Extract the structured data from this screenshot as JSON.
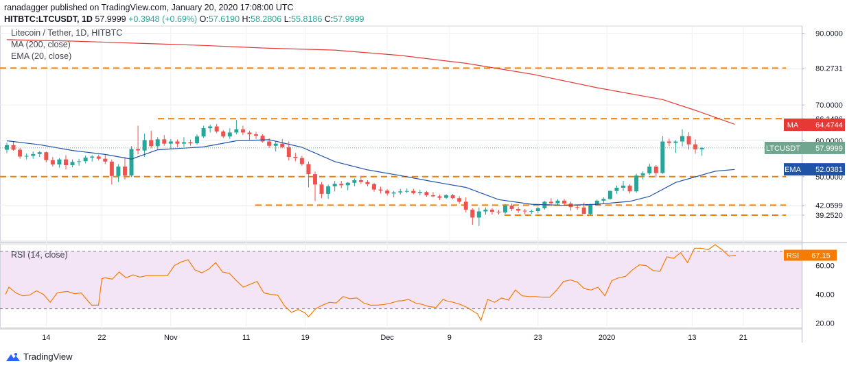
{
  "header": {
    "published": "ranadagger published on TradingView.com, January 20, 2020 17:08:00 UTC",
    "symbol": "HITBTC:LTCUSDT, 1D",
    "last": "57.9999",
    "change": "+0.3948 (+0.69%)",
    "o_label": "O:",
    "o": "57.6190",
    "h_label": "H:",
    "h": "58.2806",
    "l_label": "L:",
    "l": "55.8186",
    "c_label": "C:",
    "c": "57.9999"
  },
  "legend": {
    "pair": "Litecoin / Tether, 1D, HITBTC",
    "ma": "MA (200, close)",
    "ema": "EMA (20, close)",
    "rsi": "RSI (14, close)"
  },
  "brand": "TradingView",
  "colors": {
    "up": "#26a69a",
    "down": "#ef5350",
    "ma": "#e53935",
    "ema": "#1e53a8",
    "level": "#f57c00",
    "rsi": "#f57c00",
    "rsi_band": "#f3e5f5",
    "price_tag": "#70a690"
  },
  "chart_data": [
    {
      "type": "candlestick",
      "y_range": [
        32,
        92
      ],
      "y_ticks": [
        "90.0000",
        "80.2731",
        "70.0000",
        "66.1486",
        "64.4744",
        "60.0000",
        "57.9999",
        "52.0381",
        "50.0000",
        "42.0599",
        "39.2520"
      ],
      "x_ticks": [
        "14",
        "22",
        "Nov",
        "11",
        "19",
        "Dec",
        "9",
        "23",
        "2020",
        "13",
        "21"
      ],
      "horizontal_levels": [
        80.2731,
        66.1486,
        50.0,
        42.0599,
        39.252
      ],
      "tags": [
        {
          "label": "MA",
          "value": "64.4744",
          "price": 64.4744,
          "color": "#e53935"
        },
        {
          "label": "LTCUSDT",
          "value": "57.9999",
          "price": 57.9999,
          "color": "#70a690"
        },
        {
          "label": "EMA",
          "value": "52.0381",
          "price": 52.0381,
          "color": "#1e53a8"
        }
      ],
      "candles": [
        [
          57.5,
          59.5,
          56.5,
          58.8
        ],
        [
          58.8,
          59.8,
          57.2,
          57.5
        ],
        [
          57.5,
          58.0,
          55.0,
          55.6
        ],
        [
          55.6,
          56.5,
          54.8,
          55.8
        ],
        [
          55.8,
          57.0,
          55.0,
          56.3
        ],
        [
          56.3,
          57.2,
          55.5,
          56.8
        ],
        [
          56.8,
          57.0,
          54.0,
          54.6
        ],
        [
          54.6,
          55.5,
          52.8,
          53.4
        ],
        [
          53.4,
          55.2,
          52.5,
          54.8
        ],
        [
          54.8,
          56.0,
          52.0,
          53.2
        ],
        [
          53.2,
          54.8,
          52.6,
          54.1
        ],
        [
          54.1,
          55.0,
          53.0,
          54.3
        ],
        [
          54.3,
          55.9,
          53.7,
          55.3
        ],
        [
          55.3,
          56.0,
          54.2,
          55.6
        ],
        [
          55.6,
          56.2,
          54.5,
          55.0
        ],
        [
          55.0,
          56.2,
          53.5,
          54.2
        ],
        [
          54.2,
          54.8,
          47.8,
          50.2
        ],
        [
          50.2,
          53.5,
          48.5,
          52.8
        ],
        [
          52.8,
          55.5,
          49.2,
          50.3
        ],
        [
          50.3,
          58.5,
          49.9,
          57.7
        ],
        [
          57.7,
          64.2,
          56.2,
          57.3
        ],
        [
          57.3,
          62.0,
          55.5,
          60.2
        ],
        [
          60.2,
          62.8,
          57.9,
          58.5
        ],
        [
          58.5,
          61.0,
          57.7,
          60.4
        ],
        [
          60.4,
          61.6,
          58.6,
          59.2
        ],
        [
          59.2,
          60.5,
          57.7,
          59.8
        ],
        [
          59.8,
          60.4,
          58.2,
          59.2
        ],
        [
          59.2,
          61.0,
          58.3,
          59.6
        ],
        [
          59.6,
          60.3,
          58.6,
          59.3
        ],
        [
          59.3,
          61.8,
          58.9,
          61.2
        ],
        [
          61.2,
          64.2,
          60.8,
          63.5
        ],
        [
          63.5,
          64.5,
          62.3,
          64.0
        ],
        [
          64.0,
          64.7,
          62.1,
          62.6
        ],
        [
          62.6,
          63.0,
          60.8,
          61.2
        ],
        [
          61.2,
          63.5,
          60.5,
          62.3
        ],
        [
          62.3,
          65.8,
          61.8,
          63.2
        ],
        [
          63.2,
          64.2,
          61.6,
          62.3
        ],
        [
          62.3,
          62.8,
          60.2,
          61.8
        ],
        [
          61.8,
          62.5,
          60.5,
          61.4
        ],
        [
          61.4,
          61.8,
          59.5,
          59.8
        ],
        [
          59.8,
          60.7,
          58.0,
          58.6
        ],
        [
          58.6,
          59.8,
          57.0,
          59.2
        ],
        [
          59.2,
          60.5,
          57.9,
          58.2
        ],
        [
          58.2,
          59.8,
          54.5,
          55.5
        ],
        [
          55.5,
          56.6,
          54.3,
          55.2
        ],
        [
          55.2,
          55.8,
          53.0,
          53.5
        ],
        [
          53.5,
          54.2,
          47.0,
          50.7
        ],
        [
          50.7,
          51.4,
          43.2,
          47.8
        ],
        [
          47.8,
          48.5,
          44.0,
          45.2
        ],
        [
          45.2,
          47.8,
          43.8,
          47.3
        ],
        [
          47.3,
          48.8,
          45.9,
          48.0
        ],
        [
          48.0,
          48.8,
          46.8,
          47.6
        ],
        [
          47.6,
          48.5,
          46.2,
          48.3
        ],
        [
          48.3,
          49.5,
          47.3,
          49.0
        ],
        [
          49.0,
          50.0,
          48.0,
          48.5
        ],
        [
          48.5,
          49.0,
          47.3,
          47.9
        ],
        [
          47.9,
          48.3,
          45.8,
          46.4
        ],
        [
          46.4,
          47.2,
          45.3,
          46.1
        ],
        [
          46.1,
          46.5,
          44.7,
          45.3
        ],
        [
          45.3,
          46.0,
          44.2,
          45.6
        ],
        [
          45.6,
          46.6,
          45.0,
          45.9
        ],
        [
          45.9,
          46.7,
          45.4,
          46.0
        ],
        [
          46.0,
          46.6,
          45.1,
          45.4
        ],
        [
          45.4,
          46.3,
          44.8,
          45.7
        ],
        [
          45.7,
          46.0,
          44.4,
          44.8
        ],
        [
          44.8,
          45.7,
          44.2,
          44.5
        ],
        [
          44.5,
          45.0,
          43.5,
          44.1
        ],
        [
          44.1,
          45.1,
          43.8,
          44.8
        ],
        [
          44.8,
          45.2,
          43.7,
          44.0
        ],
        [
          44.0,
          44.5,
          42.5,
          43.0
        ],
        [
          43.0,
          44.2,
          40.0,
          40.8
        ],
        [
          40.8,
          41.2,
          36.6,
          38.6
        ],
        [
          38.6,
          41.4,
          36.2,
          40.3
        ],
        [
          40.3,
          41.4,
          39.4,
          40.8
        ],
        [
          40.8,
          41.2,
          39.4,
          40.2
        ],
        [
          40.2,
          40.7,
          39.5,
          40.0
        ],
        [
          40.0,
          42.4,
          39.6,
          41.9
        ],
        [
          41.9,
          42.5,
          40.4,
          41.0
        ],
        [
          41.0,
          41.5,
          39.9,
          40.5
        ],
        [
          40.5,
          41.0,
          39.5,
          40.3
        ],
        [
          40.3,
          40.8,
          39.6,
          40.4
        ],
        [
          40.4,
          41.6,
          39.8,
          41.2
        ],
        [
          41.2,
          43.2,
          40.8,
          43.0
        ],
        [
          43.0,
          44.0,
          41.8,
          42.6
        ],
        [
          42.6,
          43.7,
          42.0,
          43.3
        ],
        [
          43.3,
          43.8,
          42.2,
          42.5
        ],
        [
          42.5,
          43.0,
          40.5,
          41.5
        ],
        [
          41.5,
          42.0,
          40.7,
          41.4
        ],
        [
          41.4,
          42.8,
          39.8,
          39.6
        ],
        [
          39.6,
          42.4,
          39.3,
          42.2
        ],
        [
          42.2,
          43.6,
          41.9,
          43.3
        ],
        [
          43.3,
          44.2,
          42.5,
          43.8
        ],
        [
          43.8,
          46.2,
          43.5,
          46.0
        ],
        [
          46.0,
          47.5,
          45.2,
          46.9
        ],
        [
          46.9,
          48.8,
          46.0,
          47.5
        ],
        [
          47.5,
          47.9,
          45.3,
          45.9
        ],
        [
          45.9,
          50.8,
          45.5,
          50.3
        ],
        [
          50.3,
          51.5,
          49.2,
          50.9
        ],
        [
          50.9,
          53.6,
          50.5,
          52.8
        ],
        [
          52.8,
          53.2,
          49.8,
          51.0
        ],
        [
          51.0,
          61.3,
          50.8,
          59.8
        ],
        [
          59.8,
          60.6,
          58.5,
          59.4
        ],
        [
          59.4,
          60.2,
          56.6,
          59.8
        ],
        [
          59.8,
          63.2,
          58.4,
          61.3
        ],
        [
          61.3,
          62.4,
          57.5,
          59.0
        ],
        [
          59.0,
          60.4,
          56.4,
          57.6
        ],
        [
          57.6,
          58.3,
          55.8,
          58.0
        ]
      ],
      "ma200": [
        [
          0,
          88.2
        ],
        [
          10,
          87.8
        ],
        [
          20,
          87.2
        ],
        [
          30,
          86.6
        ],
        [
          40,
          85.8
        ],
        [
          50,
          85.3
        ],
        [
          60,
          83.8
        ],
        [
          70,
          81.6
        ],
        [
          80,
          78.6
        ],
        [
          90,
          74.8
        ],
        [
          100,
          71.5
        ],
        [
          105,
          68.5
        ],
        [
          111,
          64.6
        ]
      ],
      "ema20": [
        [
          0,
          60.0
        ],
        [
          5,
          58.9
        ],
        [
          10,
          57.3
        ],
        [
          15,
          56.2
        ],
        [
          19,
          54.9
        ],
        [
          23,
          57.5
        ],
        [
          30,
          58.3
        ],
        [
          35,
          60.0
        ],
        [
          40,
          60.3
        ],
        [
          45,
          58.2
        ],
        [
          50,
          54.2
        ],
        [
          55,
          51.9
        ],
        [
          60,
          50.3
        ],
        [
          65,
          48.6
        ],
        [
          70,
          47.0
        ],
        [
          75,
          43.6
        ],
        [
          80,
          42.3
        ],
        [
          85,
          42.0
        ],
        [
          90,
          42.3
        ],
        [
          95,
          43.1
        ],
        [
          98,
          44.5
        ],
        [
          102,
          48.4
        ],
        [
          108,
          51.5
        ],
        [
          111,
          52.0
        ]
      ]
    },
    {
      "type": "line",
      "title": "RSI (14, close)",
      "y_range": [
        17,
        75
      ],
      "y_ticks": [
        "67.15",
        "60.00",
        "40.00",
        "20.00"
      ],
      "band": [
        30,
        70
      ],
      "last": "67.15",
      "values": [
        [
          0,
          40.0
        ],
        [
          1,
          45.0
        ],
        [
          3,
          41.0
        ],
        [
          5,
          39.0
        ],
        [
          7,
          39.5
        ],
        [
          9,
          42.5
        ],
        [
          11,
          40.0
        ],
        [
          13,
          34.5
        ],
        [
          15,
          41.0
        ],
        [
          16,
          41.5
        ],
        [
          18,
          42.0
        ],
        [
          20,
          40.5
        ],
        [
          22,
          41.0
        ],
        [
          23,
          38.0
        ],
        [
          25,
          32.5
        ],
        [
          27,
          32.5
        ],
        [
          28,
          51.0
        ],
        [
          29,
          51.5
        ],
        [
          31,
          50.5
        ],
        [
          33,
          55.5
        ],
        [
          35,
          51.5
        ],
        [
          37,
          53.5
        ],
        [
          39,
          52.0
        ],
        [
          41,
          53.0
        ],
        [
          45,
          53.0
        ],
        [
          47,
          53.0
        ],
        [
          49,
          60.0
        ],
        [
          51,
          62.5
        ],
        [
          53,
          64.0
        ],
        [
          55,
          57.0
        ],
        [
          57,
          55.0
        ],
        [
          59,
          57.5
        ],
        [
          61,
          62.0
        ],
        [
          63,
          55.5
        ],
        [
          65,
          54.5
        ],
        [
          67,
          49.5
        ],
        [
          69,
          45.0
        ],
        [
          71,
          47.0
        ],
        [
          73,
          49.0
        ],
        [
          75,
          41.0
        ],
        [
          77,
          40.0
        ],
        [
          79,
          39.5
        ],
        [
          81,
          32.0
        ],
        [
          83,
          27.5
        ],
        [
          85,
          29.5
        ],
        [
          87,
          27.0
        ],
        [
          88,
          24.5
        ],
        [
          90,
          30.0
        ],
        [
          92,
          32.5
        ],
        [
          94,
          34.5
        ],
        [
          96,
          34.0
        ],
        [
          98,
          38.5
        ],
        [
          100,
          37.0
        ],
        [
          102,
          37.5
        ],
        [
          104,
          34.0
        ],
        [
          106,
          32.5
        ],
        [
          108,
          32.5
        ],
        [
          110,
          33.0
        ],
        [
          112,
          34.0
        ],
        [
          114,
          35.5
        ],
        [
          115,
          35.5
        ],
        [
          117,
          36.5
        ],
        [
          119,
          34.0
        ],
        [
          121,
          33.0
        ],
        [
          123,
          31.5
        ],
        [
          125,
          31.0
        ],
        [
          127,
          36.5
        ],
        [
          128,
          35.5
        ],
        [
          130,
          34.5
        ],
        [
          132,
          33.0
        ],
        [
          134,
          31.0
        ],
        [
          135,
          29.5
        ],
        [
          137,
          26.5
        ],
        [
          138,
          22.0
        ],
        [
          140,
          36.5
        ],
        [
          142,
          34.5
        ],
        [
          144,
          37.5
        ],
        [
          146,
          36.0
        ],
        [
          148,
          43.0
        ],
        [
          150,
          39.0
        ],
        [
          152,
          38.5
        ],
        [
          154,
          38.5
        ],
        [
          156,
          38.0
        ],
        [
          158,
          38.0
        ],
        [
          160,
          43.0
        ],
        [
          162,
          49.0
        ],
        [
          164,
          50.0
        ],
        [
          166,
          48.5
        ],
        [
          168,
          44.0
        ],
        [
          170,
          43.0
        ],
        [
          172,
          45.0
        ],
        [
          174,
          39.0
        ],
        [
          176,
          49.5
        ],
        [
          178,
          51.5
        ],
        [
          180,
          52.5
        ],
        [
          182,
          57.0
        ],
        [
          184,
          60.5
        ],
        [
          186,
          60.0
        ],
        [
          188,
          56.5
        ],
        [
          190,
          56.0
        ],
        [
          192,
          66.0
        ],
        [
          194,
          65.0
        ],
        [
          196,
          69.0
        ],
        [
          198,
          62.0
        ],
        [
          200,
          72.0
        ],
        [
          202,
          72.0
        ],
        [
          204,
          71.0
        ],
        [
          206,
          74.5
        ],
        [
          208,
          71.0
        ],
        [
          210,
          66.5
        ],
        [
          212,
          67.15
        ]
      ]
    }
  ]
}
